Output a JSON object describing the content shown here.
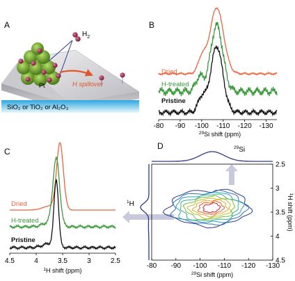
{
  "colors": {
    "dried": "#e8643c",
    "h_treated": "#3a9a3a",
    "pristine": "#111111",
    "projection": "#2a3a8c",
    "arrow": "#c9c9dd",
    "cluster": "#7fb33a",
    "hydrogen": "#8e1f3f",
    "spill_arrow": "#e0562b",
    "support_band": "#45b6e6"
  },
  "panels": {
    "a": {
      "letter": "A",
      "h2_label": "H",
      "h2_sub": "2",
      "pt_label": "Pt",
      "spillover_label": "H spillover",
      "support_label": "SiO₂ or TiO₂ or Al₂O₃"
    },
    "b": {
      "letter": "B"
    },
    "c": {
      "letter": "C"
    },
    "d": {
      "letter": "D",
      "si_label": "29Si",
      "h_label": "1H"
    }
  },
  "chart_data": [
    {
      "type": "line",
      "panel": "B",
      "xlabel_sup": "29",
      "xlabel": "Si shift (ppm)",
      "xlim": [
        -80,
        -135
      ],
      "xticks": [
        -80,
        -90,
        -100,
        -110,
        -120,
        -130
      ],
      "series": [
        {
          "name": "Dried",
          "color": "#e8643c",
          "peak": -107,
          "width": 4.5,
          "height": 1.0,
          "baseline": 0.42,
          "shoulder": -100,
          "noise": 0.018
        },
        {
          "name": "H-treated",
          "color": "#3a9a3a",
          "peak": -107,
          "width": 4.0,
          "height": 1.0,
          "baseline": 0.25,
          "shoulder": -99,
          "noise": 0.07
        },
        {
          "name": "Pristine",
          "color": "#111111",
          "peak": -107,
          "width": 4.0,
          "height": 1.0,
          "baseline": 0.05,
          "shoulder": -100,
          "noise": 0.045
        }
      ]
    },
    {
      "type": "line",
      "panel": "C",
      "xlabel_sup": "1",
      "xlabel": "H shift (ppm)",
      "xlim": [
        4.5,
        2.5
      ],
      "xticks": [
        4.5,
        4,
        3.5,
        3,
        2.5
      ],
      "series": [
        {
          "name": "Dried",
          "color": "#e8643c",
          "peak": 3.55,
          "width": 0.09,
          "height": 1.0,
          "baseline": 0.62
        },
        {
          "name": "H-treated",
          "color": "#3a9a3a",
          "peak": 3.62,
          "width": 0.09,
          "height": 1.0,
          "baseline": 0.3
        },
        {
          "name": "Pristine",
          "color": "#111111",
          "peak": 3.62,
          "width": 0.06,
          "height": 1.0,
          "baseline": 0.03
        }
      ]
    },
    {
      "type": "heatmap",
      "panel": "D",
      "xlabel_sup": "29",
      "xlabel": "Si shift (ppm)",
      "ylabel_sup": "1",
      "ylabel": "H shift (ppm)",
      "xlim": [
        -80,
        -130
      ],
      "ylim": [
        2.5,
        4.5
      ],
      "xticks": [
        -80,
        -90,
        -100,
        -110,
        -120,
        -130
      ],
      "yticks": [
        2.5,
        3,
        3.5,
        4,
        4.5
      ],
      "peak_x": -105,
      "peak_y": 3.4,
      "contour_levels": 9
    }
  ]
}
